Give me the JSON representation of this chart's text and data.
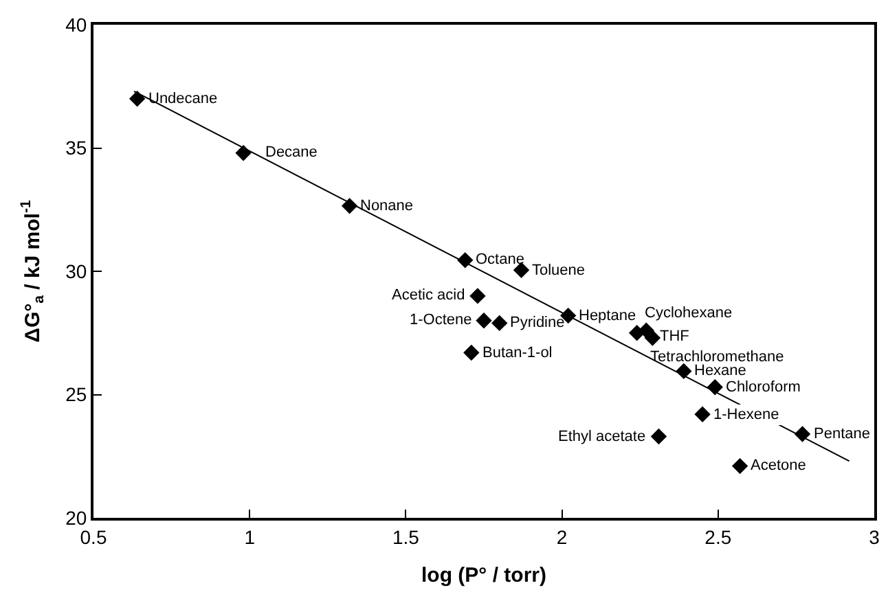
{
  "chart_data": {
    "type": "scatter",
    "xlabel": "log (P° / torr)",
    "ylabel": "ΔG°$_{a}$ / kJ mol$^{-1}$",
    "xlim": [
      0.5,
      3
    ],
    "xticks": [
      0.5,
      1,
      1.5,
      2,
      2.5,
      3
    ],
    "ylim": [
      20,
      40
    ],
    "yticks": [
      20,
      25,
      30,
      35,
      40
    ],
    "marker": "diamond",
    "series": [
      {
        "color": "#000000",
        "x": [
          0.64,
          0.98,
          1.32,
          1.69,
          1.87,
          1.73,
          1.75,
          1.8,
          1.71,
          2.02,
          2.24,
          2.27,
          2.29,
          2.39,
          2.49,
          2.45,
          2.31,
          2.77,
          2.57
        ],
        "values": [
          37.0,
          34.8,
          32.65,
          30.45,
          30.05,
          29.0,
          28.0,
          27.9,
          26.7,
          28.2,
          27.5,
          27.6,
          27.3,
          25.95,
          25.3,
          24.2,
          23.3,
          23.4,
          22.1
        ]
      },
      {
        "type": "line",
        "color": "#000000",
        "marker": "none",
        "line_style": "solid",
        "x": [
          0.63,
          2.92
        ],
        "values": [
          37.3,
          22.3
        ]
      }
    ],
    "annotations": [
      {
        "text": "Undecane",
        "x": 0.64,
        "y": 37.0
      },
      {
        "text": "Decane",
        "x": 0.98,
        "y": 34.8
      },
      {
        "text": "Nonane",
        "x": 1.32,
        "y": 32.65
      },
      {
        "text": "Octane",
        "x": 1.69,
        "y": 30.45
      },
      {
        "text": "Toluene",
        "x": 1.87,
        "y": 30.05
      },
      {
        "text": "Acetic acid",
        "x": 1.73,
        "y": 29.0
      },
      {
        "text": "1-Octene",
        "x": 1.75,
        "y": 28.0
      },
      {
        "text": "Pyridine",
        "x": 1.8,
        "y": 27.9
      },
      {
        "text": "Butan-1-ol",
        "x": 1.71,
        "y": 26.7
      },
      {
        "text": "Heptane",
        "x": 2.02,
        "y": 28.2
      },
      {
        "text": "Cyclohexane",
        "x": 2.24,
        "y": 27.5
      },
      {
        "text": "THF",
        "x": 2.27,
        "y": 27.6
      },
      {
        "text": "Tetrachloromethane",
        "x": 2.29,
        "y": 27.3
      },
      {
        "text": "Hexane",
        "x": 2.39,
        "y": 25.95
      },
      {
        "text": "Chloroform",
        "x": 2.49,
        "y": 25.3
      },
      {
        "text": "1-Hexene",
        "x": 2.45,
        "y": 24.2
      },
      {
        "text": "Ethyl acetate",
        "x": 2.31,
        "y": 23.3
      },
      {
        "text": "Pentane",
        "x": 2.77,
        "y": 23.4
      },
      {
        "text": "Acetone",
        "x": 2.57,
        "y": 22.1
      }
    ]
  }
}
